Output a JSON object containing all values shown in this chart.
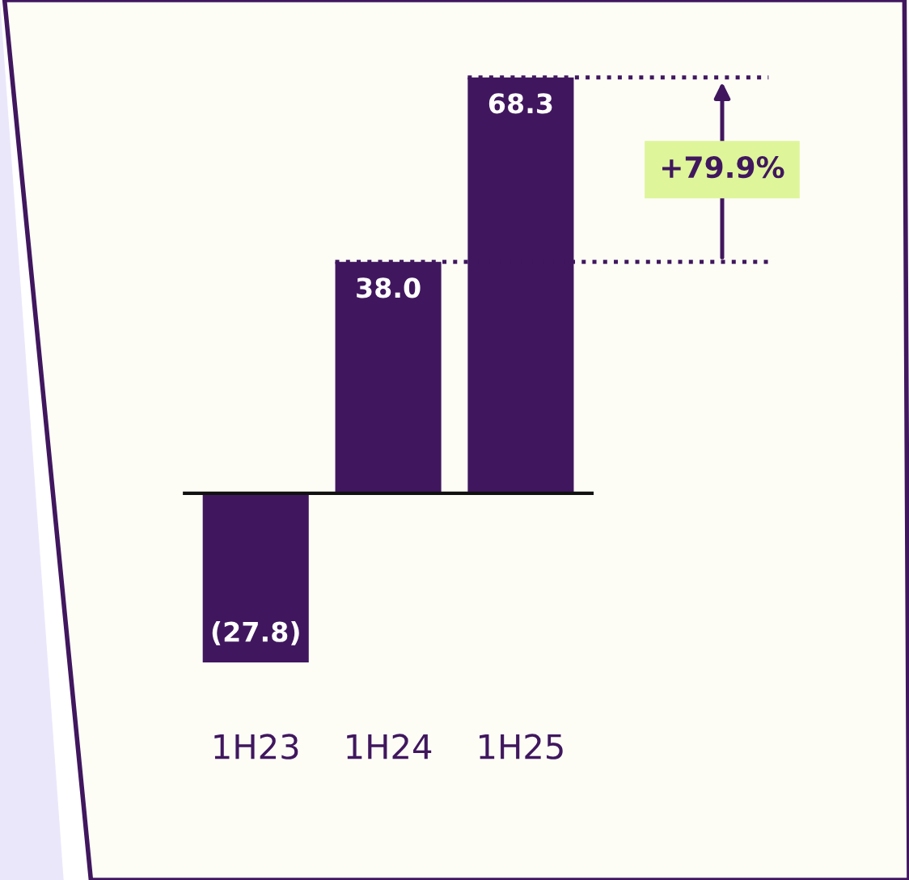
{
  "chart_data": {
    "type": "bar",
    "categories": [
      "1H23",
      "1H24",
      "1H25"
    ],
    "values": [
      -27.8,
      38.0,
      68.3
    ],
    "color": "#40175e",
    "data_labels": true,
    "value_labels": [
      "(27.8)",
      "38.0",
      "68.3"
    ],
    "ref_lines": [
      {
        "axis": "y",
        "value": 38.0,
        "label": null,
        "color": "#40175e",
        "line_style": "dotted"
      },
      {
        "axis": "y",
        "value": 68.3,
        "label": null,
        "color": "#40175e",
        "line_style": "dotted"
      }
    ],
    "annotations": [
      {
        "text": "+79.9%",
        "y": 68.3
      }
    ],
    "legend": false
  }
}
